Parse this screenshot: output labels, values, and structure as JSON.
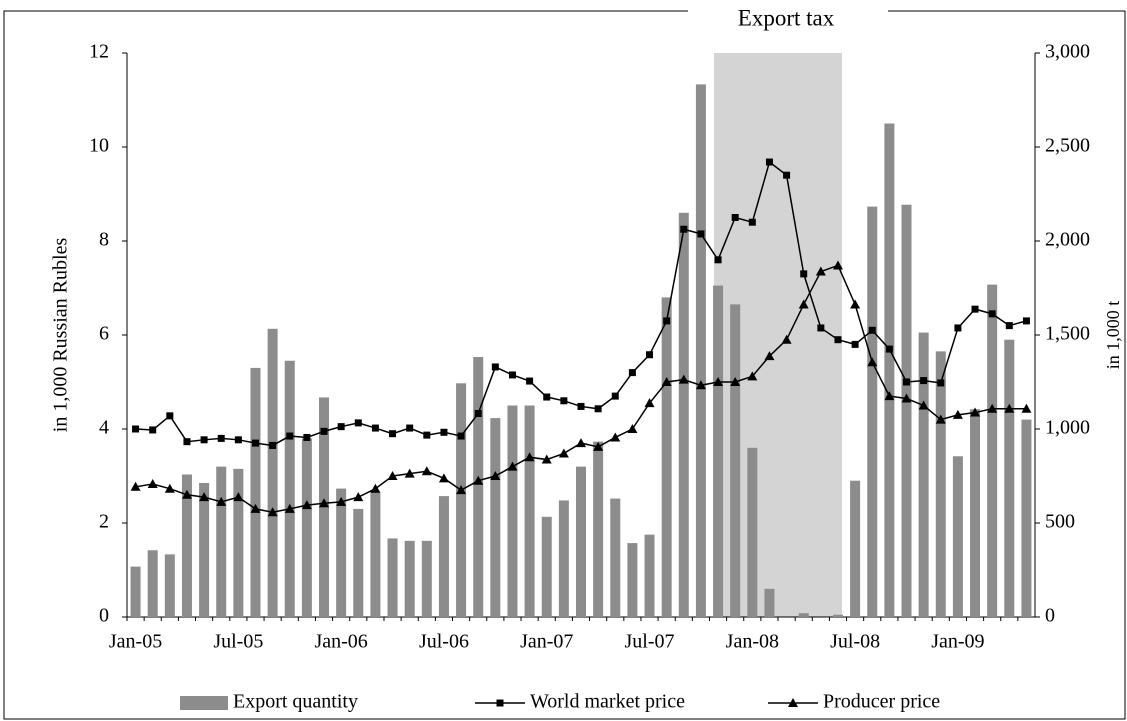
{
  "chart_data": {
    "type": "bar-line",
    "title": "Export tax",
    "ylabel": "in 1,000 Russian Rubles",
    "y2label": "in 1,000 t",
    "categories": [
      "Jan-05",
      null,
      null,
      null,
      null,
      null,
      "Jul-05",
      null,
      null,
      null,
      null,
      null,
      "Jan-06",
      null,
      null,
      null,
      null,
      null,
      "Jul-06",
      null,
      null,
      null,
      null,
      null,
      "Jan-07",
      null,
      null,
      null,
      null,
      null,
      "Jul-07",
      null,
      null,
      null,
      null,
      null,
      "Jan-08",
      null,
      null,
      null,
      null,
      null,
      "Jul-08",
      null,
      null,
      null,
      null,
      null,
      "Jan-09",
      null,
      null,
      null,
      null
    ],
    "series": [
      {
        "name": "Export quantity",
        "type": "bar",
        "axis": "y2",
        "color": "#8c8c8c",
        "values": [
          268,
          355,
          333,
          758,
          713,
          800,
          788,
          1325,
          1533,
          1363,
          950,
          1168,
          683,
          575,
          663,
          418,
          405,
          405,
          643,
          1243,
          1383,
          1058,
          1125,
          1125,
          533,
          620,
          800,
          933,
          630,
          393,
          438,
          1700,
          2150,
          2833,
          1763,
          1663,
          900,
          150,
          0,
          20,
          0,
          12,
          725,
          2183,
          2625,
          2193,
          1513,
          1413,
          855,
          1105,
          1768,
          1475,
          1050
        ]
      },
      {
        "name": "World market price",
        "type": "line",
        "marker": "square",
        "color": "#000000",
        "values": [
          4.0,
          3.98,
          4.28,
          3.73,
          3.77,
          3.8,
          3.77,
          3.7,
          3.65,
          3.85,
          3.82,
          3.95,
          4.05,
          4.13,
          4.02,
          3.9,
          4.02,
          3.87,
          3.93,
          3.85,
          4.33,
          5.32,
          5.15,
          5.02,
          4.68,
          4.6,
          4.48,
          4.43,
          4.7,
          5.2,
          5.58,
          6.3,
          8.25,
          8.15,
          7.6,
          8.5,
          8.4,
          9.68,
          9.4,
          7.3,
          6.15,
          5.9,
          5.8,
          6.1,
          5.7,
          5.0,
          5.03,
          4.98,
          6.15,
          6.55,
          6.45,
          6.2,
          6.3
        ]
      },
      {
        "name": "Producer price",
        "type": "line",
        "marker": "triangle",
        "color": "#000000",
        "values": [
          2.77,
          2.83,
          2.73,
          2.6,
          2.55,
          2.45,
          2.55,
          2.3,
          2.23,
          2.3,
          2.38,
          2.42,
          2.45,
          2.55,
          2.73,
          3.0,
          3.05,
          3.1,
          2.95,
          2.7,
          2.9,
          3.0,
          3.2,
          3.4,
          3.35,
          3.48,
          3.7,
          3.62,
          3.82,
          4.0,
          4.55,
          5.0,
          5.05,
          4.93,
          5.0,
          5.0,
          5.12,
          5.55,
          5.9,
          6.65,
          7.35,
          7.48,
          6.65,
          5.42,
          4.7,
          4.65,
          4.5,
          4.2,
          4.3,
          4.35,
          4.43,
          4.43,
          4.43
        ]
      }
    ],
    "ylim": [
      0,
      12
    ],
    "yticks": [
      0,
      2,
      4,
      6,
      8,
      10,
      12
    ],
    "y2lim": [
      0,
      3000
    ],
    "y2ticks": [
      0,
      500,
      {
        "value": 1000,
        "label": "1,000"
      },
      {
        "value": 1500,
        "label": "1,500"
      },
      {
        "value": 2000,
        "label": "2,000"
      },
      {
        "value": 2500,
        "label": "2,500"
      },
      {
        "value": 3000,
        "label": "3,000"
      }
    ],
    "grid": false,
    "legend": "bottom"
  }
}
